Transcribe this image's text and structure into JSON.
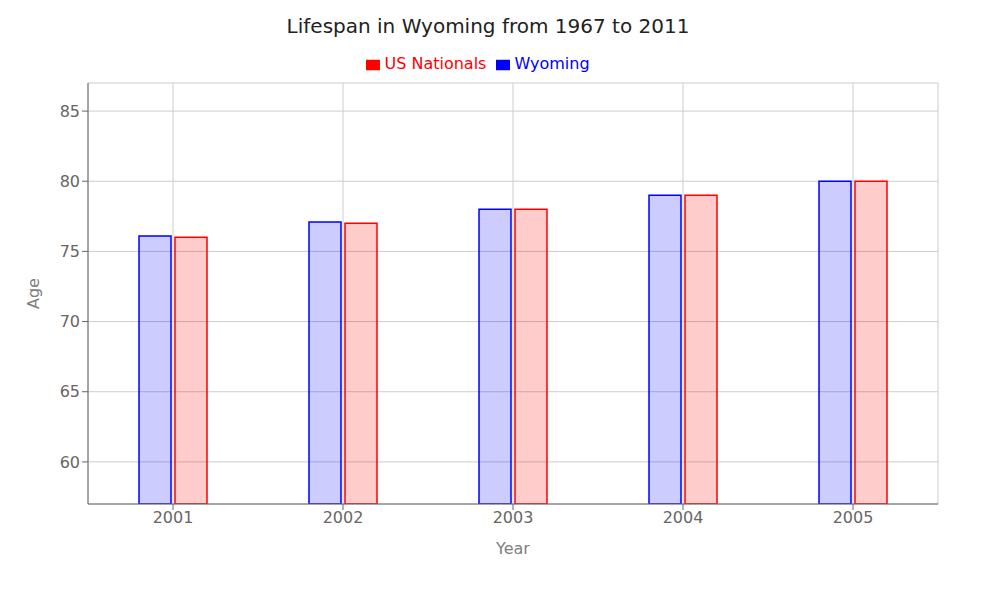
{
  "chart_data": {
    "type": "bar",
    "title": "Lifespan in Wyoming from 1967 to 2011",
    "xlabel": "Year",
    "ylabel": "Age",
    "categories": [
      "2001",
      "2002",
      "2003",
      "2004",
      "2005"
    ],
    "series": [
      {
        "name": "Wyoming",
        "color": "#0000ff",
        "values": [
          76.1,
          77.1,
          78.0,
          79.0,
          80.0
        ]
      },
      {
        "name": "US Nationals",
        "color": "#ff0000",
        "values": [
          76.0,
          77.0,
          78.0,
          79.0,
          80.0
        ]
      }
    ],
    "ylim": [
      57,
      87
    ],
    "yticks": [
      60,
      65,
      70,
      75,
      80,
      85
    ],
    "grid": true,
    "legend": "top"
  }
}
